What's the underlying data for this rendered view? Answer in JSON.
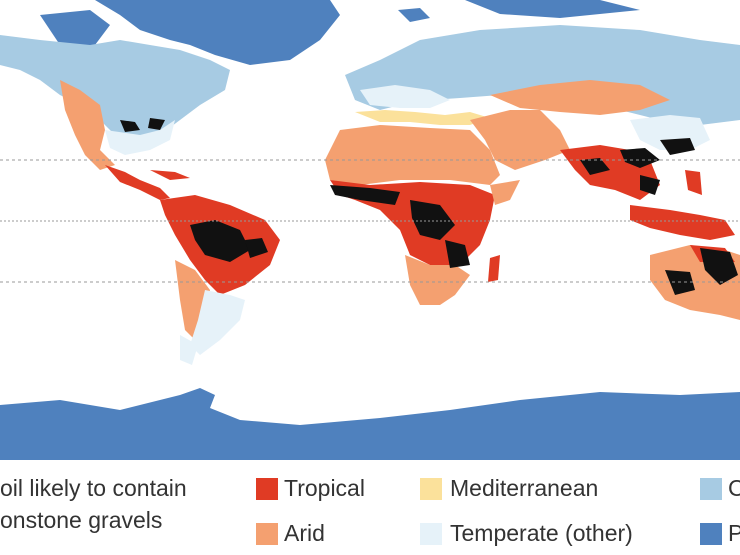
{
  "map": {
    "legend": {
      "gravel_label_line1": "oil likely to contain",
      "gravel_label_line2": "onstone gravels",
      "items": [
        {
          "label": "Tropical",
          "color": "#e03b24"
        },
        {
          "label": "Arid",
          "color": "#f4a070"
        },
        {
          "label": "Mediterranean",
          "color": "#fbe19b"
        },
        {
          "label": "Temperate (other)",
          "color": "#e6f2f9"
        },
        {
          "label": "C",
          "color": "#a7cbe3"
        },
        {
          "label": "P",
          "color": "#4f81be"
        }
      ]
    },
    "colors": {
      "ocean": "#ffffff",
      "gravel": "#111111",
      "graticule": "#999999"
    }
  }
}
